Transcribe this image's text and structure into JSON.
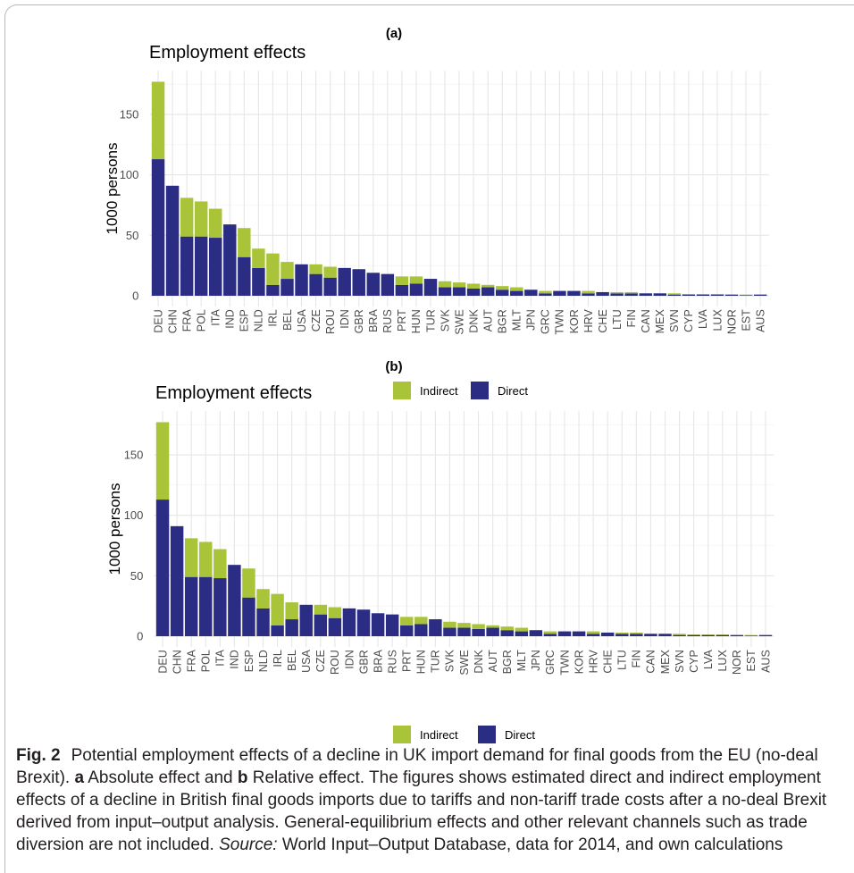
{
  "chart_data": [
    {
      "panel_label": "(a)",
      "type": "bar",
      "stacked": true,
      "title": "Employment effects",
      "xlabel": "",
      "ylabel": "1000 persons",
      "ylim": [
        0,
        186
      ],
      "yticks": [
        0,
        50,
        100,
        150
      ],
      "grid": true,
      "legend": {
        "position": "bottom",
        "entries": [
          "Indirect",
          "Direct"
        ]
      },
      "categories": [
        "DEU",
        "CHN",
        "FRA",
        "POL",
        "ITA",
        "IND",
        "ESP",
        "NLD",
        "IRL",
        "BEL",
        "USA",
        "CZE",
        "ROU",
        "IDN",
        "GBR",
        "BRA",
        "RUS",
        "PRT",
        "HUN",
        "TUR",
        "SVK",
        "SWE",
        "DNK",
        "AUT",
        "BGR",
        "MLT",
        "JPN",
        "GRC",
        "TWN",
        "KOR",
        "HRV",
        "CHE",
        "LTU",
        "FIN",
        "CAN",
        "MEX",
        "SVN",
        "CYP",
        "LVA",
        "LUX",
        "NOR",
        "EST",
        "AUS"
      ],
      "series": [
        {
          "name": "Direct",
          "color": "#2b2d84",
          "values": [
            113,
            91,
            49,
            49,
            48,
            59,
            32,
            23,
            9,
            14,
            26,
            18,
            15,
            23,
            22,
            19,
            18,
            9,
            10,
            14,
            7,
            7,
            6,
            7,
            5,
            4,
            5,
            2,
            4,
            4,
            2,
            3,
            2,
            2,
            2,
            2,
            1,
            1,
            1,
            1,
            1,
            0.5,
            1
          ]
        },
        {
          "name": "Indirect",
          "color": "#a9c439",
          "values": [
            64,
            0,
            32,
            29,
            24,
            0,
            24,
            16,
            26,
            14,
            0,
            8,
            9,
            0,
            0,
            0,
            0,
            7,
            6,
            0,
            5,
            4,
            4,
            2,
            3,
            3,
            0,
            2,
            0,
            0,
            2,
            0,
            1,
            1,
            0,
            0,
            1,
            0.5,
            0.5,
            0.5,
            0,
            0.5,
            0
          ]
        }
      ]
    },
    {
      "panel_label": "(b)",
      "type": "bar",
      "stacked": true,
      "title": "Employment effects",
      "xlabel": "",
      "ylabel": "1000 persons",
      "ylim": [
        0,
        186
      ],
      "yticks": [
        0,
        50,
        100,
        150
      ],
      "grid": true,
      "legend": {
        "position": "bottom",
        "entries": [
          "Indirect",
          "Direct"
        ]
      },
      "categories": [
        "DEU",
        "CHN",
        "FRA",
        "POL",
        "ITA",
        "IND",
        "ESP",
        "NLD",
        "IRL",
        "BEL",
        "USA",
        "CZE",
        "ROU",
        "IDN",
        "GBR",
        "BRA",
        "RUS",
        "PRT",
        "HUN",
        "TUR",
        "SVK",
        "SWE",
        "DNK",
        "AUT",
        "BGR",
        "MLT",
        "JPN",
        "GRC",
        "TWN",
        "KOR",
        "HRV",
        "CHE",
        "LTU",
        "FIN",
        "CAN",
        "MEX",
        "SVN",
        "CYP",
        "LVA",
        "LUX",
        "NOR",
        "EST",
        "AUS"
      ],
      "series": [
        {
          "name": "Direct",
          "color": "#2b2d84",
          "values": [
            113,
            91,
            49,
            49,
            48,
            59,
            32,
            23,
            9,
            14,
            26,
            18,
            15,
            23,
            22,
            19,
            18,
            9,
            10,
            14,
            7,
            7,
            6,
            7,
            5,
            4,
            5,
            2,
            4,
            4,
            2,
            3,
            2,
            2,
            2,
            2,
            1,
            1,
            1,
            1,
            1,
            0.5,
            1
          ]
        },
        {
          "name": "Indirect",
          "color": "#a9c439",
          "values": [
            64,
            0,
            32,
            29,
            24,
            0,
            24,
            16,
            26,
            14,
            0,
            8,
            9,
            0,
            0,
            0,
            0,
            7,
            6,
            0,
            5,
            4,
            4,
            2,
            3,
            3,
            0,
            2,
            0,
            0,
            2,
            0,
            1,
            1,
            0,
            0,
            1,
            0.5,
            0.5,
            0.5,
            0,
            0.5,
            0
          ]
        }
      ]
    }
  ],
  "caption": {
    "label": "Fig. 2",
    "line1": "Potential employment effects of a decline in UK import demand for final goods from the EU (no-deal",
    "line2_start": "Brexit). ",
    "marker_a": "a",
    "line2_mid": " Absolute effect and ",
    "marker_b": "b",
    "line2_end": " Relative effect. The figures shows estimated direct and indirect employment",
    "line3": "effects of a decline in British final goods imports due to tariffs and non-tariff trade costs after a no-deal Brexit",
    "line4": "derived from input–output analysis. General-equilibrium effects and other relevant channels such as trade",
    "line5_start": "diversion are not included. ",
    "source_label": "Source:",
    "line5_end": " World Input–Output Database, data for 2014, and own calculations"
  }
}
